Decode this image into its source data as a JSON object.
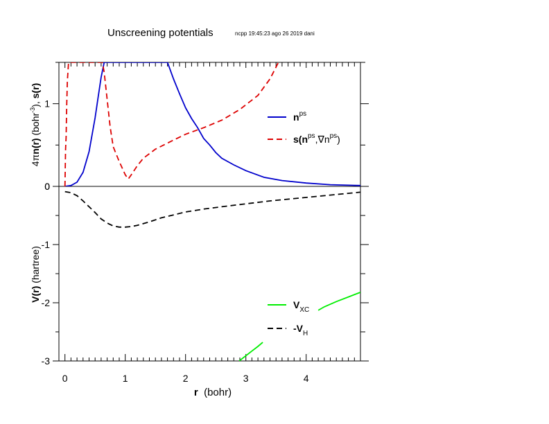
{
  "chart_data": {
    "type": "line",
    "title": "Unscreening potentials",
    "subtitle": "ncpp 19:45:23 ago 26 2019 dani",
    "xlabel": {
      "bold": "r",
      "rest": "  (bohr)"
    },
    "xlim": [
      -0.1,
      4.9
    ],
    "xticks": [
      0,
      1,
      2,
      3,
      4
    ],
    "panels": [
      {
        "id": "density",
        "ylabel": "4πn(r) (bohr-3), s(r)",
        "ylim": [
          0,
          1.5
        ],
        "yticks": [
          0,
          1
        ],
        "series": [
          {
            "name": "n^ps",
            "name_main": "n",
            "name_sup": "ps",
            "color": "#0000cc",
            "dash": "solid",
            "x": [
              0.0,
              0.1,
              0.2,
              0.3,
              0.4,
              0.5,
              0.55,
              0.6,
              0.65,
              1.7,
              1.8,
              1.9,
              2.0,
              2.1,
              2.2,
              2.3,
              2.4,
              2.5,
              2.6,
              2.8,
              3.0,
              3.3,
              3.6,
              4.0,
              4.4,
              4.9
            ],
            "y": [
              0.0,
              0.01,
              0.05,
              0.17,
              0.42,
              0.83,
              1.08,
              1.32,
              1.5,
              1.5,
              1.3,
              1.12,
              0.95,
              0.82,
              0.71,
              0.58,
              0.5,
              0.41,
              0.34,
              0.26,
              0.19,
              0.11,
              0.07,
              0.04,
              0.02,
              0.01
            ]
          },
          {
            "name": "s(n^ps,∇n^ps)",
            "name_main": "s(n",
            "name_sup": "ps",
            "name_mid": ",∇n",
            "name_sup2": "ps",
            "name_end": ")",
            "color": "#dd0000",
            "dash": "dashed",
            "x": [
              0.0,
              0.01,
              0.02,
              0.03,
              0.04,
              0.06,
              0.62,
              0.65,
              0.7,
              0.75,
              0.8,
              0.9,
              0.95,
              1.0,
              1.05,
              1.1,
              1.2,
              1.3,
              1.5,
              1.8,
              2.0,
              2.3,
              2.6,
              2.9,
              3.2,
              3.4,
              3.54
            ],
            "y": [
              0.0,
              0.45,
              0.6,
              1.0,
              1.28,
              1.5,
              1.5,
              1.38,
              1.05,
              0.72,
              0.48,
              0.3,
              0.22,
              0.14,
              0.09,
              0.14,
              0.25,
              0.34,
              0.45,
              0.56,
              0.63,
              0.71,
              0.8,
              0.93,
              1.1,
              1.3,
              1.5
            ]
          }
        ],
        "legend_position": "right"
      },
      {
        "id": "potential",
        "ylabel": "V(r) (hartree)",
        "ylim": [
          -3,
          0
        ],
        "yticks": [
          0,
          -1,
          -2,
          -3
        ],
        "series": [
          {
            "name": "V_XC",
            "name_main": "V",
            "name_sub": "XC",
            "color": "#00ee00",
            "dash": "solid",
            "x": [
              2.89,
              3.0,
              3.1,
              3.2,
              3.28,
              4.2,
              4.3,
              4.5,
              4.7,
              4.9
            ],
            "y": [
              -3.0,
              -2.91,
              -2.83,
              -2.75,
              -2.68,
              -2.13,
              -2.07,
              -1.98,
              -1.9,
              -1.82
            ]
          },
          {
            "name": "-V_H",
            "name_main": "-V",
            "name_sub": "H",
            "color": "#000000",
            "dash": "dashed",
            "x": [
              0.0,
              0.1,
              0.2,
              0.3,
              0.4,
              0.5,
              0.6,
              0.7,
              0.8,
              0.9,
              1.0,
              1.1,
              1.2,
              1.4,
              1.6,
              1.8,
              2.0,
              2.3,
              2.6,
              3.0,
              3.4,
              3.8,
              4.2,
              4.6,
              4.9
            ],
            "y": [
              -0.09,
              -0.11,
              -0.16,
              -0.25,
              -0.35,
              -0.45,
              -0.56,
              -0.63,
              -0.68,
              -0.7,
              -0.7,
              -0.69,
              -0.67,
              -0.61,
              -0.54,
              -0.49,
              -0.44,
              -0.39,
              -0.35,
              -0.3,
              -0.25,
              -0.21,
              -0.17,
              -0.13,
              -0.1
            ]
          }
        ],
        "legend_position": "lower-right"
      }
    ]
  }
}
